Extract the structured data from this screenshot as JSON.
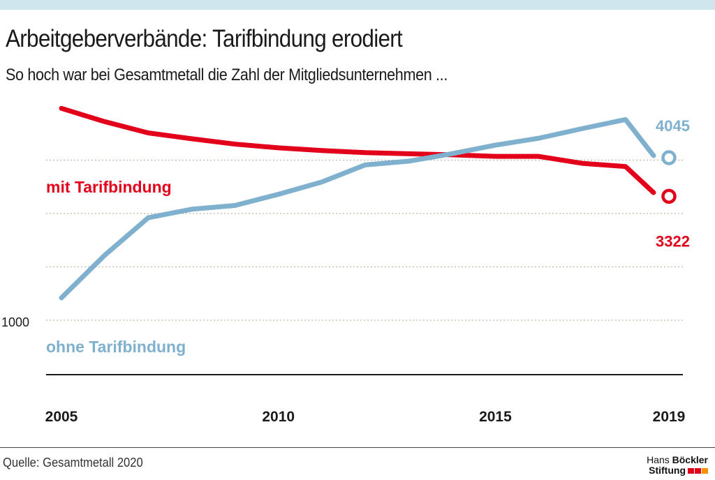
{
  "header": {
    "title": "Arbeitgeberverbände: Tarifbindung erodiert",
    "subtitle": "So hoch war bei Gesamtmetall die Zahl der Mitgliedsunternehmen ..."
  },
  "footer": {
    "source": "Quelle: Gesamtmetall 2020",
    "logo_line1_light": "Hans",
    "logo_line1_bold": "Böckler",
    "logo_line2": "Stiftung"
  },
  "colors": {
    "mit": "#e2001a",
    "ohne": "#7fb1cf",
    "grid": "#bcb7a8",
    "axis": "#1a1a1a",
    "logo_red": "#e2001a",
    "logo_orange": "#f39200"
  },
  "chart_data": {
    "type": "line",
    "x": [
      2005,
      2006,
      2007,
      2008,
      2009,
      2010,
      2011,
      2012,
      2013,
      2014,
      2015,
      2016,
      2017,
      2018,
      2019
    ],
    "xticks": [
      "2005",
      "2010",
      "2015",
      "2019"
    ],
    "yticks": [
      "1000"
    ],
    "ylim": [
      0,
      5000
    ],
    "grid": true,
    "series": [
      {
        "name": "mit Tarifbindung",
        "color": "#e2001a",
        "values": [
          4970,
          4720,
          4510,
          4400,
          4300,
          4230,
          4180,
          4140,
          4120,
          4100,
          4070,
          4070,
          3940,
          3880,
          3322
        ],
        "end_label": "3322"
      },
      {
        "name": "ohne Tarifbindung",
        "color": "#7fb1cf",
        "values": [
          1420,
          2220,
          2920,
          3080,
          3150,
          3360,
          3590,
          3910,
          3980,
          4120,
          4280,
          4410,
          4590,
          4760,
          4045
        ],
        "end_label": "4045"
      }
    ]
  }
}
